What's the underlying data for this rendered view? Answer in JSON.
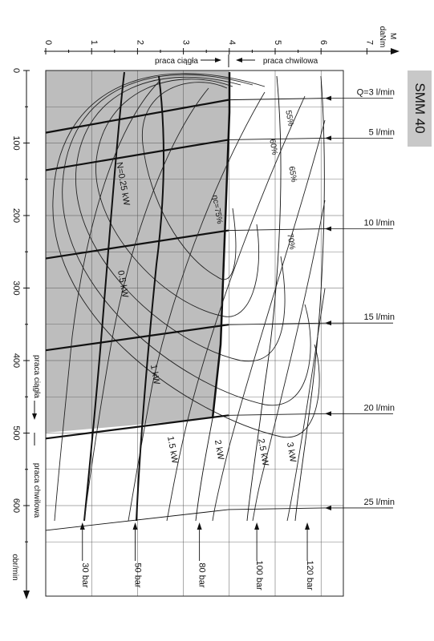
{
  "model_label": "SMM 40",
  "chart_data": {
    "type": "line",
    "torque_axis": {
      "label_top": "M",
      "label_bottom": "daNm",
      "ticks": [
        "0",
        "1",
        "2",
        "3",
        "4",
        "5",
        "6",
        "7"
      ],
      "range": [
        0,
        7
      ]
    },
    "speed_axis": {
      "label": "obr/min",
      "ticks": [
        "0",
        "100",
        "200",
        "300",
        "400",
        "500",
        "600"
      ],
      "range": [
        0,
        700
      ]
    },
    "region_labels": {
      "continuous": "praca ciągła",
      "intermittent": "praca chwilowa"
    },
    "flow_lines": [
      {
        "label": "Q=3 l/min",
        "speed": 25
      },
      {
        "label": "5 l/min",
        "speed": 80
      },
      {
        "label": "10 l/min",
        "speed": 205
      },
      {
        "label": "15 l/min",
        "speed": 335
      },
      {
        "label": "20 l/min",
        "speed": 460
      },
      {
        "label": "25 l/min",
        "speed": 590
      }
    ],
    "pressure_lines": [
      {
        "label": "30 bar",
        "torque": 0.8
      },
      {
        "label": "50 bar",
        "torque": 1.95
      },
      {
        "label": "80 bar",
        "torque": 3.35
      },
      {
        "label": "100 bar",
        "torque": 4.6
      },
      {
        "label": "120 bar",
        "torque": 5.7
      }
    ],
    "power_labels": [
      "N=0.25 kW",
      "0.5 kW",
      "1 kW",
      "1.5 kW",
      "2 kW",
      "2.5 kW",
      "3 kW"
    ],
    "efficiency_labels": [
      "ηc=75%",
      "70%",
      "65%",
      "60%",
      "55%"
    ]
  }
}
